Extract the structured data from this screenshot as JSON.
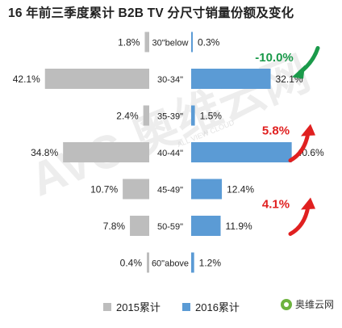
{
  "title": "16 年前三季度累计 B2B TV 分尺寸销量份额及变化",
  "chart_data": {
    "type": "bar",
    "orientation": "horizontal-butterfly",
    "categories": [
      "30\"below",
      "30-34\"",
      "35-39\"",
      "40-44\"",
      "45-49\"",
      "50-59\"",
      "60\"above"
    ],
    "series": [
      {
        "name": "2015累计",
        "color": "#bdbdbd",
        "values": [
          1.8,
          42.1,
          2.4,
          34.8,
          10.7,
          7.8,
          0.4
        ],
        "labels": [
          "1.8%",
          "42.1%",
          "2.4%",
          "34.8%",
          "10.7%",
          "7.8%",
          "0.4%"
        ]
      },
      {
        "name": "2016累计",
        "color": "#5b9bd5",
        "values": [
          0.3,
          32.1,
          1.5,
          40.6,
          12.4,
          11.9,
          1.2
        ],
        "labels": [
          "0.3%",
          "32.1%",
          "1.5%",
          "40.6%",
          "12.4%",
          "11.9%",
          "1.2%"
        ]
      }
    ],
    "annotations": [
      {
        "text": "-10.0%",
        "category": "30-34\"",
        "color": "#1a9a4a",
        "direction": "down"
      },
      {
        "text": "5.8%",
        "category": "40-44\"",
        "color": "#e02020",
        "direction": "up"
      },
      {
        "text": "4.1%",
        "category": "50-59\"",
        "color": "#e02020",
        "direction": "up"
      }
    ],
    "legend_position": "bottom",
    "grid": false
  },
  "watermark": {
    "text": "AVC 奥维云网",
    "subtext": "ALL VIEW CLOUD"
  },
  "brand": {
    "text": "奥维云网"
  }
}
